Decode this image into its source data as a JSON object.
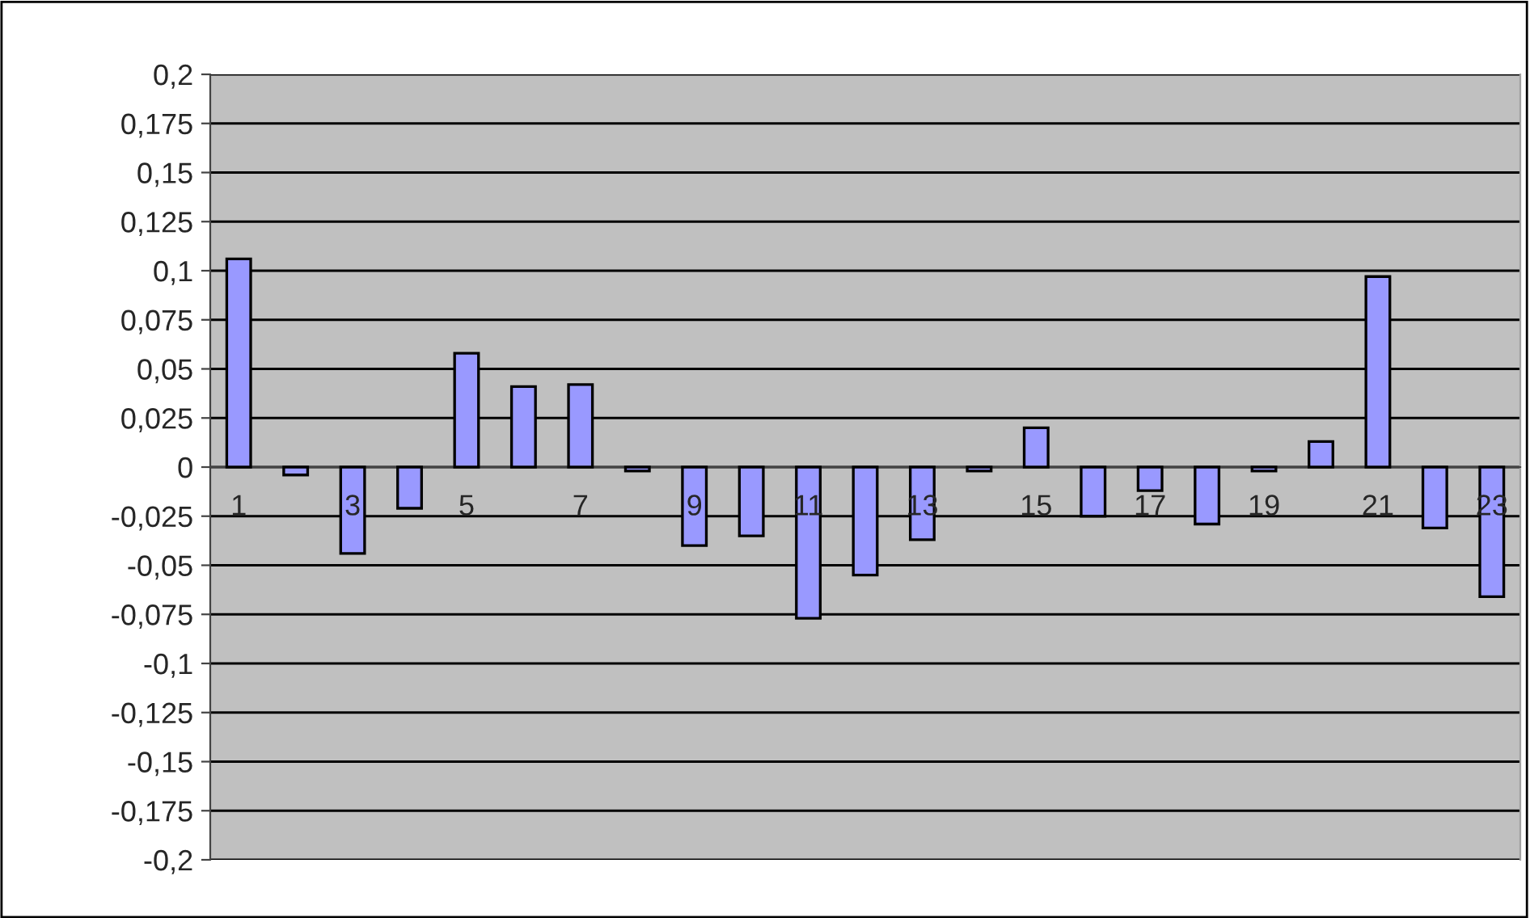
{
  "chart_data": {
    "type": "bar",
    "categories": [
      "1",
      null,
      "3",
      null,
      "5",
      null,
      "7",
      null,
      "9",
      null,
      "11",
      null,
      "13",
      null,
      "15",
      null,
      "17",
      null,
      "19",
      null,
      "21",
      null,
      "23"
    ],
    "values": [
      0.106,
      -0.004,
      -0.044,
      -0.021,
      0.058,
      0.041,
      0.042,
      -0.002,
      -0.04,
      -0.035,
      -0.077,
      -0.055,
      -0.037,
      -0.002,
      0.02,
      -0.025,
      -0.012,
      -0.029,
      -0.002,
      0.013,
      0.097,
      -0.031,
      -0.066
    ],
    "color": "#9999ff",
    "ylim": [
      -0.2,
      0.2
    ],
    "yticks": [
      {
        "value": -0.2,
        "label": "-0,2"
      },
      {
        "value": -0.175,
        "label": "-0,175"
      },
      {
        "value": -0.15,
        "label": "-0,15"
      },
      {
        "value": -0.125,
        "label": "-0,125"
      },
      {
        "value": -0.1,
        "label": "-0,1"
      },
      {
        "value": -0.075,
        "label": "-0,075"
      },
      {
        "value": -0.05,
        "label": "-0,05"
      },
      {
        "value": -0.025,
        "label": "-0,025"
      },
      {
        "value": 0,
        "label": "0"
      },
      {
        "value": 0.025,
        "label": "0,025"
      },
      {
        "value": 0.05,
        "label": "0,05"
      },
      {
        "value": 0.075,
        "label": "0,075"
      },
      {
        "value": 0.1,
        "label": "0,1"
      },
      {
        "value": 0.125,
        "label": "0,125"
      },
      {
        "value": 0.15,
        "label": "0,15"
      },
      {
        "value": 0.175,
        "label": "0,175"
      },
      {
        "value": 0.2,
        "label": "0,2"
      }
    ],
    "grid": "y"
  }
}
